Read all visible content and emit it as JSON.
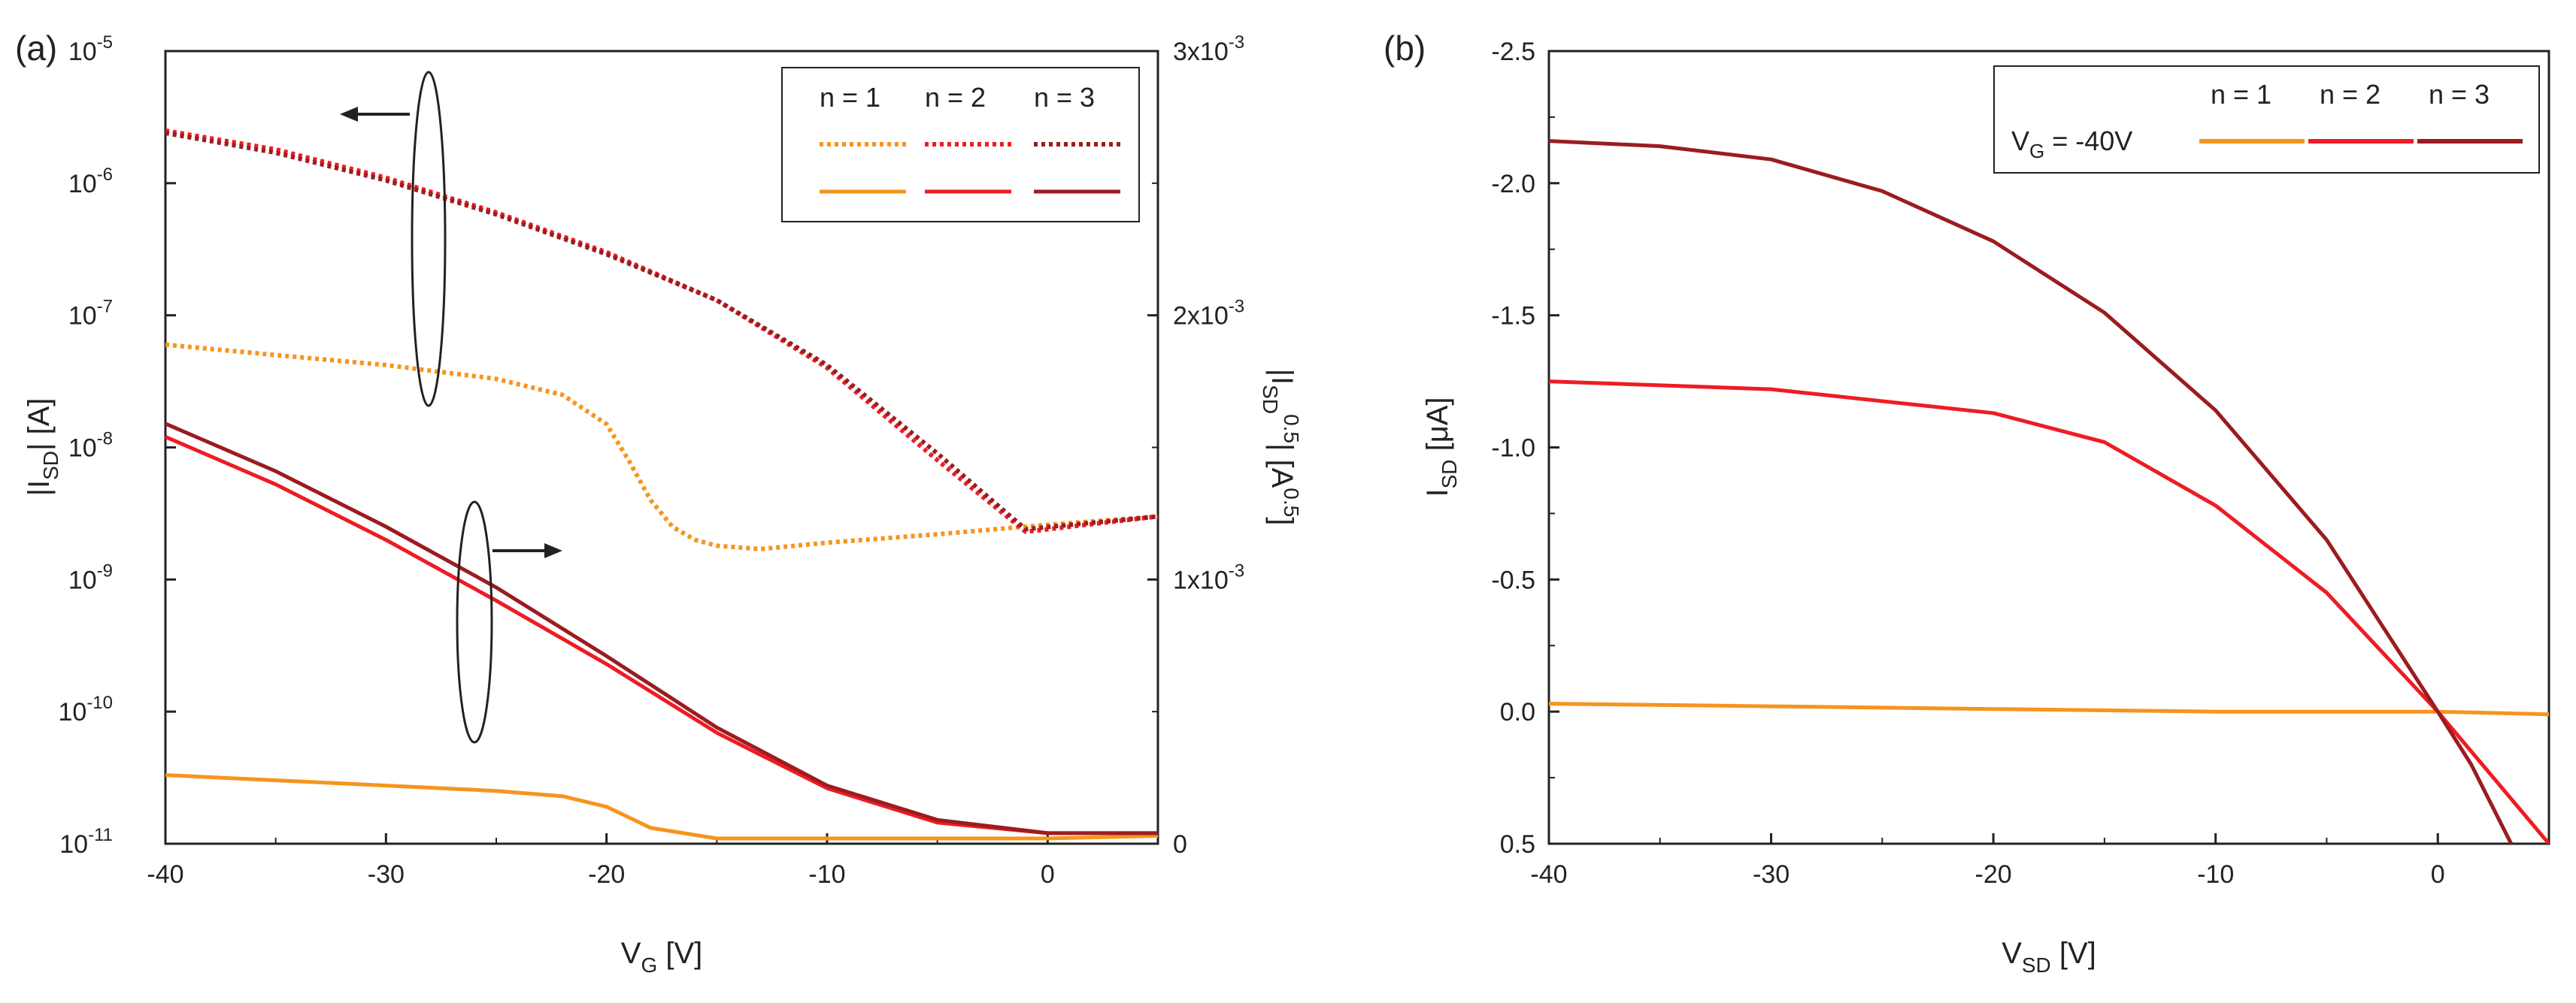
{
  "chart_data": [
    {
      "panel": "(a)",
      "type": "line",
      "xlabel": "V",
      "xlabel_sub": "G",
      "xlabel_unit": " [V]",
      "ylabel_left": "|I",
      "ylabel_left_sub": "SD",
      "ylabel_left_unit": "| [A]",
      "ylabel_right": "|I",
      "ylabel_right_sub": "SD",
      "ylabel_right_sup": "0.5",
      "ylabel_right_unit": "| [A",
      "ylabel_right_unit_sup": "0.5",
      "ylabel_right_end": "]",
      "xlim": [
        -40,
        5
      ],
      "x_ticks": [
        "-40",
        "-30",
        "-20",
        "-10",
        "0"
      ],
      "x_tick_values": [
        -40,
        -30,
        -20,
        -10,
        0
      ],
      "y_left_scale": "log",
      "y_left_lim": [
        1e-11,
        1e-05
      ],
      "y_left_ticks": [
        {
          "base": "10",
          "exp": "-11"
        },
        {
          "base": "10",
          "exp": "-10"
        },
        {
          "base": "10",
          "exp": "-9"
        },
        {
          "base": "10",
          "exp": "-8"
        },
        {
          "base": "10",
          "exp": "-7"
        },
        {
          "base": "10",
          "exp": "-6"
        },
        {
          "base": "10",
          "exp": "-5"
        }
      ],
      "y_right_lim": [
        0,
        0.003
      ],
      "y_right_ticks": [
        {
          "mant": "0",
          "exp": ""
        },
        {
          "mant": "1x10",
          "exp": "-3"
        },
        {
          "mant": "2x10",
          "exp": "-3"
        },
        {
          "mant": "3x10",
          "exp": "-3"
        }
      ],
      "legend": {
        "placement": "top-right",
        "labels": [
          "n = 1",
          "n = 2",
          "n = 3"
        ]
      },
      "colors": {
        "n1": "#f7941d",
        "n2": "#ee1c24",
        "n3": "#9b1c1f"
      },
      "series_log_dotted": [
        {
          "n": 1,
          "x": [
            -40,
            -35,
            -30,
            -25,
            -22,
            -20,
            -19,
            -18,
            -17,
            -16,
            -15,
            -13,
            -10,
            -5,
            0,
            5
          ],
          "y": [
            6e-08,
            5e-08,
            4.2e-08,
            3.3e-08,
            2.5e-08,
            1.5e-08,
            8e-09,
            4e-09,
            2.5e-09,
            2e-09,
            1.8e-09,
            1.7e-09,
            1.9e-09,
            2.2e-09,
            2.6e-09,
            3e-09
          ]
        },
        {
          "n": 2,
          "x": [
            -40,
            -35,
            -30,
            -25,
            -20,
            -15,
            -10,
            -5,
            -1,
            0,
            5
          ],
          "y": [
            2.5e-06,
            1.8e-06,
            1.1e-06,
            6e-07,
            3e-07,
            1.3e-07,
            4e-08,
            8e-09,
            2.3e-09,
            2.4e-09,
            3e-09
          ]
        },
        {
          "n": 3,
          "x": [
            -40,
            -35,
            -30,
            -25,
            -20,
            -15,
            -10,
            -5,
            -1,
            0,
            5
          ],
          "y": [
            2.4e-06,
            1.7e-06,
            1.05e-06,
            5.8e-07,
            2.9e-07,
            1.3e-07,
            4.2e-08,
            9e-09,
            2.4e-09,
            2.5e-09,
            3e-09
          ]
        }
      ],
      "series_sqrt_solid": [
        {
          "n": 1,
          "x": [
            -40,
            -35,
            -30,
            -25,
            -22,
            -20,
            -18,
            -15,
            -10,
            -5,
            0,
            5
          ],
          "y": [
            0.00026,
            0.00024,
            0.00022,
            0.0002,
            0.00018,
            0.00014,
            6e-05,
            2e-05,
            2e-05,
            2e-05,
            2e-05,
            3e-05
          ]
        },
        {
          "n": 2,
          "x": [
            -40,
            -35,
            -30,
            -25,
            -20,
            -15,
            -10,
            -5,
            0,
            5
          ],
          "y": [
            0.00154,
            0.00136,
            0.00115,
            0.00092,
            0.00068,
            0.00042,
            0.00021,
            8e-05,
            4e-05,
            4e-05
          ]
        },
        {
          "n": 3,
          "x": [
            -40,
            -35,
            -30,
            -25,
            -20,
            -15,
            -10,
            -5,
            0,
            5
          ],
          "y": [
            0.00159,
            0.00141,
            0.0012,
            0.00097,
            0.00071,
            0.00044,
            0.00022,
            9e-05,
            4e-05,
            4e-05
          ]
        }
      ]
    },
    {
      "panel": "(b)",
      "type": "line",
      "xlabel": "V",
      "xlabel_sub": "SD",
      "xlabel_unit": " [V]",
      "ylabel": "I",
      "ylabel_sub": "SD",
      "ylabel_unit": " [μA]",
      "xlim": [
        -40,
        5
      ],
      "x_ticks": [
        "-40",
        "-30",
        "-20",
        "-10",
        "0"
      ],
      "x_tick_values": [
        -40,
        -30,
        -20,
        -10,
        0
      ],
      "ylim": [
        0.5,
        -2.5
      ],
      "y_ticks": [
        "0.5",
        "0.0",
        "-0.5",
        "-1.0",
        "-1.5",
        "-2.0",
        "-2.5"
      ],
      "y_tick_values": [
        0.5,
        0.0,
        -0.5,
        -1.0,
        -1.5,
        -2.0,
        -2.5
      ],
      "legend": {
        "placement": "top-right",
        "title": "V",
        "title_sub": "G",
        "title_value": " = -40V",
        "labels": [
          "n = 1",
          "n = 2",
          "n = 3"
        ]
      },
      "colors": {
        "n1": "#f7941d",
        "n2": "#ee1c24",
        "n3": "#9b1c1f"
      },
      "series": [
        {
          "n": 1,
          "x": [
            -40,
            -30,
            -20,
            -10,
            0,
            5
          ],
          "y": [
            -0.03,
            -0.02,
            -0.01,
            0,
            0,
            0.01
          ]
        },
        {
          "n": 2,
          "x": [
            -40,
            -30,
            -20,
            -15,
            -10,
            -5,
            0,
            2,
            5
          ],
          "y": [
            -1.25,
            -1.22,
            -1.13,
            -1.02,
            -0.78,
            -0.45,
            0,
            0.2,
            0.5
          ]
        },
        {
          "n": 3,
          "x": [
            -40,
            -35,
            -30,
            -25,
            -20,
            -15,
            -10,
            -5,
            0,
            1.5,
            3.3
          ],
          "y": [
            -2.16,
            -2.14,
            -2.09,
            -1.97,
            -1.78,
            -1.51,
            -1.14,
            -0.65,
            0,
            0.2,
            0.5
          ]
        }
      ]
    }
  ]
}
